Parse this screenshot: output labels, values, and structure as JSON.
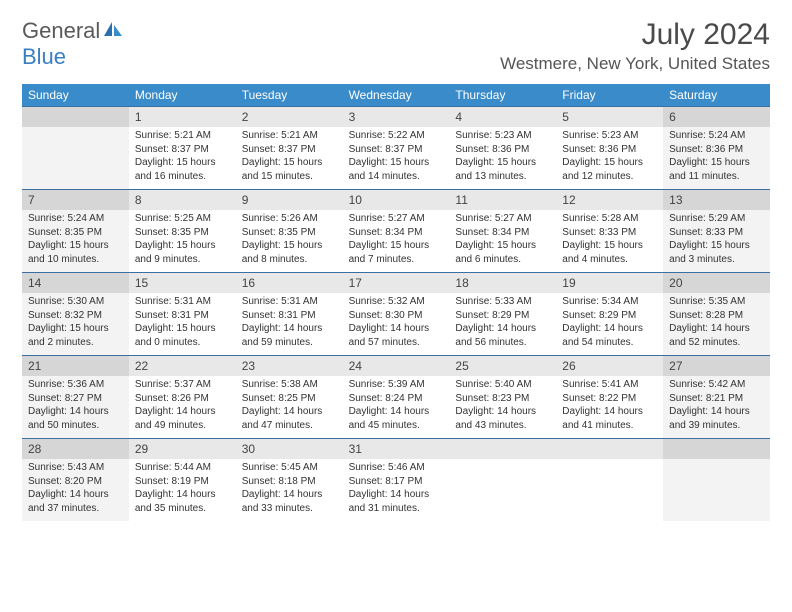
{
  "logo": {
    "general": "General",
    "blue": "Blue"
  },
  "title": "July 2024",
  "location": "Westmere, New York, United States",
  "colors": {
    "header_bg": "#3a8bc9",
    "header_text": "#ffffff",
    "daynum_bg": "#e8e8e8",
    "daynum_shaded": "#d6d6d6",
    "detail_shaded": "#f3f3f3",
    "border": "#3a6fa0",
    "logo_gray": "#5a5a5a",
    "logo_blue": "#3a7fc4"
  },
  "weekdays": [
    "Sunday",
    "Monday",
    "Tuesday",
    "Wednesday",
    "Thursday",
    "Friday",
    "Saturday"
  ],
  "weeks": [
    [
      {
        "n": "",
        "sr": "",
        "ss": "",
        "dl": ""
      },
      {
        "n": "1",
        "sr": "Sunrise: 5:21 AM",
        "ss": "Sunset: 8:37 PM",
        "dl": "Daylight: 15 hours and 16 minutes."
      },
      {
        "n": "2",
        "sr": "Sunrise: 5:21 AM",
        "ss": "Sunset: 8:37 PM",
        "dl": "Daylight: 15 hours and 15 minutes."
      },
      {
        "n": "3",
        "sr": "Sunrise: 5:22 AM",
        "ss": "Sunset: 8:37 PM",
        "dl": "Daylight: 15 hours and 14 minutes."
      },
      {
        "n": "4",
        "sr": "Sunrise: 5:23 AM",
        "ss": "Sunset: 8:36 PM",
        "dl": "Daylight: 15 hours and 13 minutes."
      },
      {
        "n": "5",
        "sr": "Sunrise: 5:23 AM",
        "ss": "Sunset: 8:36 PM",
        "dl": "Daylight: 15 hours and 12 minutes."
      },
      {
        "n": "6",
        "sr": "Sunrise: 5:24 AM",
        "ss": "Sunset: 8:36 PM",
        "dl": "Daylight: 15 hours and 11 minutes."
      }
    ],
    [
      {
        "n": "7",
        "sr": "Sunrise: 5:24 AM",
        "ss": "Sunset: 8:35 PM",
        "dl": "Daylight: 15 hours and 10 minutes."
      },
      {
        "n": "8",
        "sr": "Sunrise: 5:25 AM",
        "ss": "Sunset: 8:35 PM",
        "dl": "Daylight: 15 hours and 9 minutes."
      },
      {
        "n": "9",
        "sr": "Sunrise: 5:26 AM",
        "ss": "Sunset: 8:35 PM",
        "dl": "Daylight: 15 hours and 8 minutes."
      },
      {
        "n": "10",
        "sr": "Sunrise: 5:27 AM",
        "ss": "Sunset: 8:34 PM",
        "dl": "Daylight: 15 hours and 7 minutes."
      },
      {
        "n": "11",
        "sr": "Sunrise: 5:27 AM",
        "ss": "Sunset: 8:34 PM",
        "dl": "Daylight: 15 hours and 6 minutes."
      },
      {
        "n": "12",
        "sr": "Sunrise: 5:28 AM",
        "ss": "Sunset: 8:33 PM",
        "dl": "Daylight: 15 hours and 4 minutes."
      },
      {
        "n": "13",
        "sr": "Sunrise: 5:29 AM",
        "ss": "Sunset: 8:33 PM",
        "dl": "Daylight: 15 hours and 3 minutes."
      }
    ],
    [
      {
        "n": "14",
        "sr": "Sunrise: 5:30 AM",
        "ss": "Sunset: 8:32 PM",
        "dl": "Daylight: 15 hours and 2 minutes."
      },
      {
        "n": "15",
        "sr": "Sunrise: 5:31 AM",
        "ss": "Sunset: 8:31 PM",
        "dl": "Daylight: 15 hours and 0 minutes."
      },
      {
        "n": "16",
        "sr": "Sunrise: 5:31 AM",
        "ss": "Sunset: 8:31 PM",
        "dl": "Daylight: 14 hours and 59 minutes."
      },
      {
        "n": "17",
        "sr": "Sunrise: 5:32 AM",
        "ss": "Sunset: 8:30 PM",
        "dl": "Daylight: 14 hours and 57 minutes."
      },
      {
        "n": "18",
        "sr": "Sunrise: 5:33 AM",
        "ss": "Sunset: 8:29 PM",
        "dl": "Daylight: 14 hours and 56 minutes."
      },
      {
        "n": "19",
        "sr": "Sunrise: 5:34 AM",
        "ss": "Sunset: 8:29 PM",
        "dl": "Daylight: 14 hours and 54 minutes."
      },
      {
        "n": "20",
        "sr": "Sunrise: 5:35 AM",
        "ss": "Sunset: 8:28 PM",
        "dl": "Daylight: 14 hours and 52 minutes."
      }
    ],
    [
      {
        "n": "21",
        "sr": "Sunrise: 5:36 AM",
        "ss": "Sunset: 8:27 PM",
        "dl": "Daylight: 14 hours and 50 minutes."
      },
      {
        "n": "22",
        "sr": "Sunrise: 5:37 AM",
        "ss": "Sunset: 8:26 PM",
        "dl": "Daylight: 14 hours and 49 minutes."
      },
      {
        "n": "23",
        "sr": "Sunrise: 5:38 AM",
        "ss": "Sunset: 8:25 PM",
        "dl": "Daylight: 14 hours and 47 minutes."
      },
      {
        "n": "24",
        "sr": "Sunrise: 5:39 AM",
        "ss": "Sunset: 8:24 PM",
        "dl": "Daylight: 14 hours and 45 minutes."
      },
      {
        "n": "25",
        "sr": "Sunrise: 5:40 AM",
        "ss": "Sunset: 8:23 PM",
        "dl": "Daylight: 14 hours and 43 minutes."
      },
      {
        "n": "26",
        "sr": "Sunrise: 5:41 AM",
        "ss": "Sunset: 8:22 PM",
        "dl": "Daylight: 14 hours and 41 minutes."
      },
      {
        "n": "27",
        "sr": "Sunrise: 5:42 AM",
        "ss": "Sunset: 8:21 PM",
        "dl": "Daylight: 14 hours and 39 minutes."
      }
    ],
    [
      {
        "n": "28",
        "sr": "Sunrise: 5:43 AM",
        "ss": "Sunset: 8:20 PM",
        "dl": "Daylight: 14 hours and 37 minutes."
      },
      {
        "n": "29",
        "sr": "Sunrise: 5:44 AM",
        "ss": "Sunset: 8:19 PM",
        "dl": "Daylight: 14 hours and 35 minutes."
      },
      {
        "n": "30",
        "sr": "Sunrise: 5:45 AM",
        "ss": "Sunset: 8:18 PM",
        "dl": "Daylight: 14 hours and 33 minutes."
      },
      {
        "n": "31",
        "sr": "Sunrise: 5:46 AM",
        "ss": "Sunset: 8:17 PM",
        "dl": "Daylight: 14 hours and 31 minutes."
      },
      {
        "n": "",
        "sr": "",
        "ss": "",
        "dl": ""
      },
      {
        "n": "",
        "sr": "",
        "ss": "",
        "dl": ""
      },
      {
        "n": "",
        "sr": "",
        "ss": "",
        "dl": ""
      }
    ]
  ]
}
